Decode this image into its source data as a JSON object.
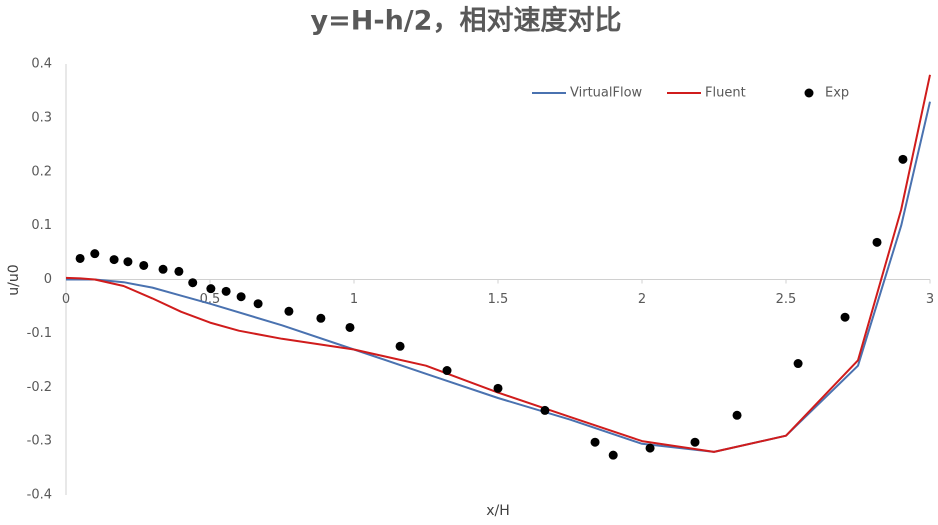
{
  "chart_data": {
    "type": "line",
    "title": "y=H-h/2，相对速度对比",
    "x_label": "x/H",
    "y_label": "u/u0",
    "xlim": [
      0,
      3
    ],
    "xticks": [
      0,
      0.5,
      1,
      1.5,
      2,
      2.5,
      3
    ],
    "ylim": [
      -0.4,
      0.4
    ],
    "yticks": [
      -0.4,
      -0.3,
      -0.2,
      -0.1,
      0,
      0.1,
      0.2,
      0.3,
      0.4
    ],
    "grid": false,
    "legend": "top-right",
    "series": [
      {
        "name": "VirtualFlow",
        "color": "#4a72b0",
        "mode": "line",
        "x": [
          0,
          0.1,
          0.2,
          0.3,
          0.4,
          0.5,
          0.75,
          1.0,
          1.25,
          1.5,
          1.75,
          2.0,
          2.25,
          2.5,
          2.75,
          2.9,
          3.0
        ],
        "values": [
          0,
          0,
          -0.005,
          -0.015,
          -0.03,
          -0.045,
          -0.085,
          -0.13,
          -0.175,
          -0.22,
          -0.26,
          -0.305,
          -0.32,
          -0.29,
          -0.16,
          0.1,
          0.33
        ]
      },
      {
        "name": "Fluent",
        "color": "#d01c1c",
        "mode": "line",
        "x": [
          0,
          0.05,
          0.1,
          0.2,
          0.3,
          0.4,
          0.5,
          0.6,
          0.75,
          1.0,
          1.25,
          1.5,
          1.75,
          2.0,
          2.25,
          2.5,
          2.75,
          2.9,
          3.0
        ],
        "values": [
          0.003,
          0.002,
          0,
          -0.012,
          -0.035,
          -0.06,
          -0.08,
          -0.095,
          -0.11,
          -0.13,
          -0.16,
          -0.21,
          -0.255,
          -0.3,
          -0.32,
          -0.29,
          -0.15,
          0.13,
          0.38
        ]
      },
      {
        "name": "Exp",
        "color": "#000000",
        "mode": "markers",
        "x": [
          0.049,
          0.1,
          0.167,
          0.215,
          0.27,
          0.337,
          0.392,
          0.44,
          0.503,
          0.556,
          0.608,
          0.667,
          0.774,
          0.885,
          0.986,
          1.16,
          1.323,
          1.5,
          1.663,
          1.837,
          1.9,
          2.028,
          2.184,
          2.33,
          2.542,
          2.705,
          2.816,
          2.906
        ],
        "values": [
          0.039,
          0.048,
          0.037,
          0.033,
          0.026,
          0.019,
          0.015,
          -0.006,
          -0.017,
          -0.022,
          -0.032,
          -0.045,
          -0.059,
          -0.072,
          -0.089,
          -0.124,
          -0.169,
          -0.202,
          -0.243,
          -0.302,
          -0.326,
          -0.313,
          -0.302,
          -0.252,
          -0.156,
          -0.07,
          0.069,
          0.223
        ]
      }
    ]
  }
}
